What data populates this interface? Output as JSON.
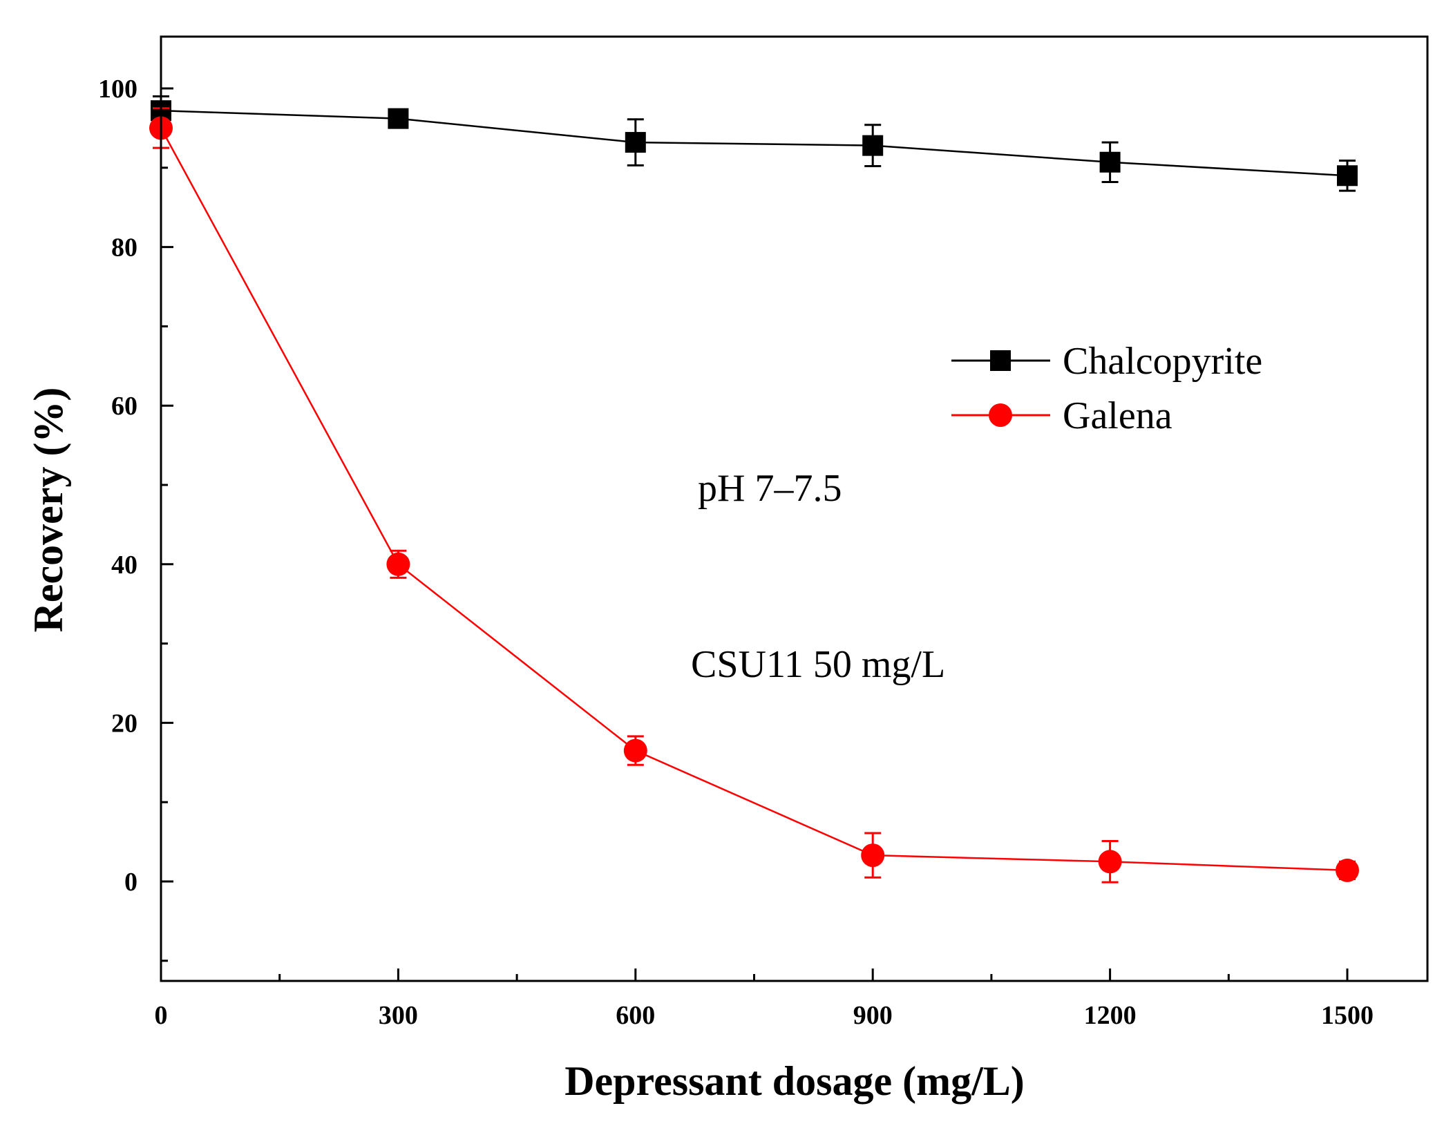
{
  "chart_data": {
    "type": "line",
    "title": "",
    "xlabel": "Depressant dosage (mg/L)",
    "ylabel": "Recovery (%)",
    "xlim": [
      0,
      1600
    ],
    "ylim": [
      -13.5,
      106
    ],
    "x_ticks": [
      0,
      300,
      600,
      900,
      1200,
      1500
    ],
    "x_minor_ticks": [
      150,
      450,
      750,
      1050,
      1350
    ],
    "y_ticks": [
      0,
      20,
      40,
      60,
      80,
      100
    ],
    "y_minor_ticks": [
      -10,
      10,
      30,
      50,
      70,
      90
    ],
    "grid": false,
    "legend_position": "upper-right",
    "x": [
      0,
      300,
      600,
      900,
      1200,
      1500
    ],
    "series": [
      {
        "name": "Chalcopyrite",
        "color": "#000000",
        "marker": "square",
        "values": [
          97.2,
          96.2,
          93.2,
          92.8,
          90.7,
          89.0
        ],
        "errors": [
          1.8,
          1.0,
          2.9,
          2.6,
          2.5,
          1.9
        ]
      },
      {
        "name": "Galena",
        "color": "#ff0000",
        "marker": "circle",
        "values": [
          95.0,
          40.0,
          16.5,
          3.3,
          2.5,
          1.4
        ],
        "errors": [
          2.5,
          1.7,
          1.8,
          2.8,
          2.6,
          1.1
        ]
      }
    ],
    "annotations": [
      "pH 7–7.5",
      "CSU11 50 mg/L"
    ]
  }
}
